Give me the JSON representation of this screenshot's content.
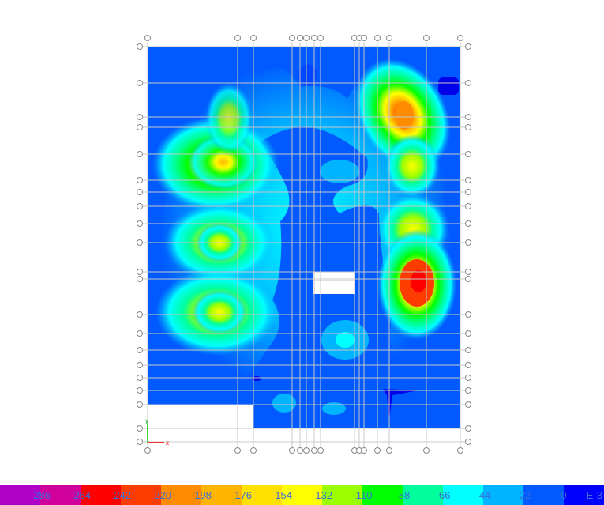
{
  "chart_data": {
    "type": "heatmap",
    "title": "",
    "colorbar": {
      "ticks": [
        "-286",
        "-264",
        "-242",
        "-220",
        "-198",
        "-176",
        "-154",
        "-132",
        "-110",
        "-88",
        "-66",
        "-44",
        "-22",
        "0"
      ],
      "unit": "E-3",
      "colors": [
        "#b000c8",
        "#d0009c",
        "#ff0000",
        "#ff3c00",
        "#ff8c00",
        "#ffb400",
        "#ffe100",
        "#ffff00",
        "#9bff00",
        "#00ff00",
        "#00ff9c",
        "#00ffff",
        "#00b4ff",
        "#005aff",
        "#0000ff"
      ]
    },
    "contour_peaks": [
      {
        "label": "left-upper",
        "value": -198
      },
      {
        "label": "left-middle",
        "value": -154
      },
      {
        "label": "left-lower",
        "value": -154
      },
      {
        "label": "right-upper",
        "value": -242
      },
      {
        "label": "right-lower",
        "value": -264
      }
    ],
    "grid_lines": {
      "vertical": 18,
      "horizontal": 24
    },
    "axes": {
      "x_label": "x",
      "y_label": "y"
    }
  }
}
